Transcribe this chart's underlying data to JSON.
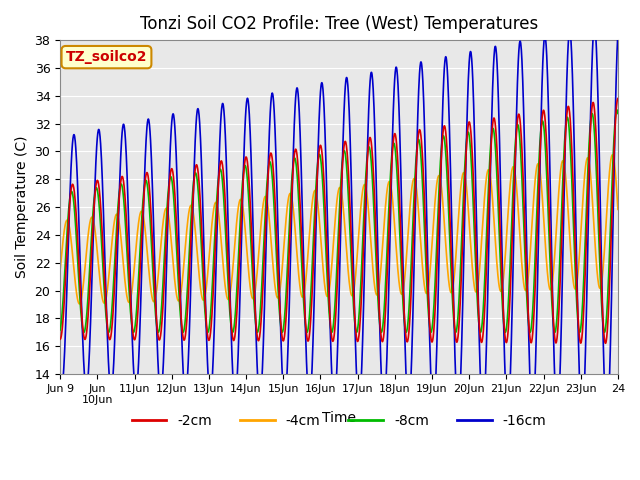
{
  "title": "Tonzi Soil CO2 Profile: Tree (West) Temperatures",
  "xlabel": "Time",
  "ylabel": "Soil Temperature (C)",
  "ylim": [
    14,
    38
  ],
  "xlim": [
    0,
    15
  ],
  "yticks": [
    14,
    16,
    18,
    20,
    22,
    24,
    26,
    28,
    30,
    32,
    34,
    36,
    38
  ],
  "bg_color": "#e8e8e8",
  "line_colors": [
    "#dd0000",
    "#ffa500",
    "#00bb00",
    "#0000cc"
  ],
  "line_labels": [
    "-2cm",
    "-4cm",
    "-8cm",
    "-16cm"
  ],
  "legend_box_text": "TZ_soilco2",
  "legend_box_facecolor": "#ffffcc",
  "legend_box_edgecolor": "#cc8800",
  "legend_box_textcolor": "#cc0000",
  "n_days": 15,
  "n_pts": 2000,
  "base_mean": 22.0,
  "trend_per_day": 0.2,
  "freq_cycles_per_day": 1.5,
  "amp_2cm": 5.5,
  "amp_4cm": 3.0,
  "amp_8cm": 5.0,
  "amp_16cm": 9.0,
  "phase_2cm_deg": -90,
  "phase_4cm_deg": -10,
  "phase_8cm_deg": -75,
  "phase_16cm_deg": -110,
  "amp_growth": 0.04,
  "lw": 1.2
}
